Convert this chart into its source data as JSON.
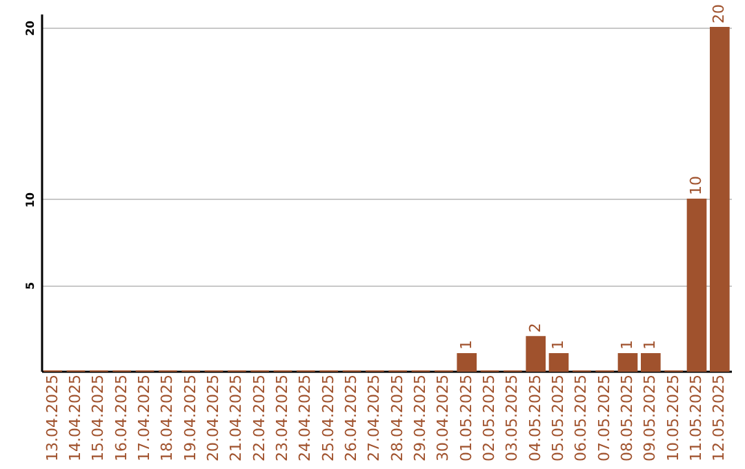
{
  "chart_data": {
    "type": "bar",
    "categories": [
      "13.04.2025",
      "14.04.2025",
      "15.04.2025",
      "16.04.2025",
      "17.04.2025",
      "18.04.2025",
      "19.04.2025",
      "20.04.2025",
      "21.04.2025",
      "22.04.2025",
      "23.04.2025",
      "24.04.2025",
      "25.04.2025",
      "26.04.2025",
      "27.04.2025",
      "28.04.2025",
      "29.04.2025",
      "30.04.2025",
      "01.05.2025",
      "02.05.2025",
      "03.05.2025",
      "04.05.2025",
      "05.05.2025",
      "06.05.2025",
      "07.05.2025",
      "08.05.2025",
      "09.05.2025",
      "10.05.2025",
      "11.05.2025",
      "12.05.2025"
    ],
    "values": [
      0,
      0,
      0,
      0,
      0,
      0,
      0,
      0,
      0,
      0,
      0,
      0,
      0,
      0,
      0,
      0,
      0,
      0,
      1,
      0,
      0,
      2,
      1,
      0,
      0,
      1,
      1,
      0,
      10,
      20
    ],
    "value_labels": [
      null,
      null,
      null,
      null,
      null,
      null,
      null,
      null,
      null,
      null,
      null,
      null,
      null,
      null,
      null,
      null,
      null,
      null,
      "1",
      null,
      null,
      "2",
      "1",
      null,
      null,
      "1",
      "1",
      null,
      "10",
      "20"
    ],
    "color": "#a0522d",
    "ylim": [
      0,
      20.8
    ],
    "yticks": [
      5,
      10,
      20
    ],
    "grid": "y"
  }
}
